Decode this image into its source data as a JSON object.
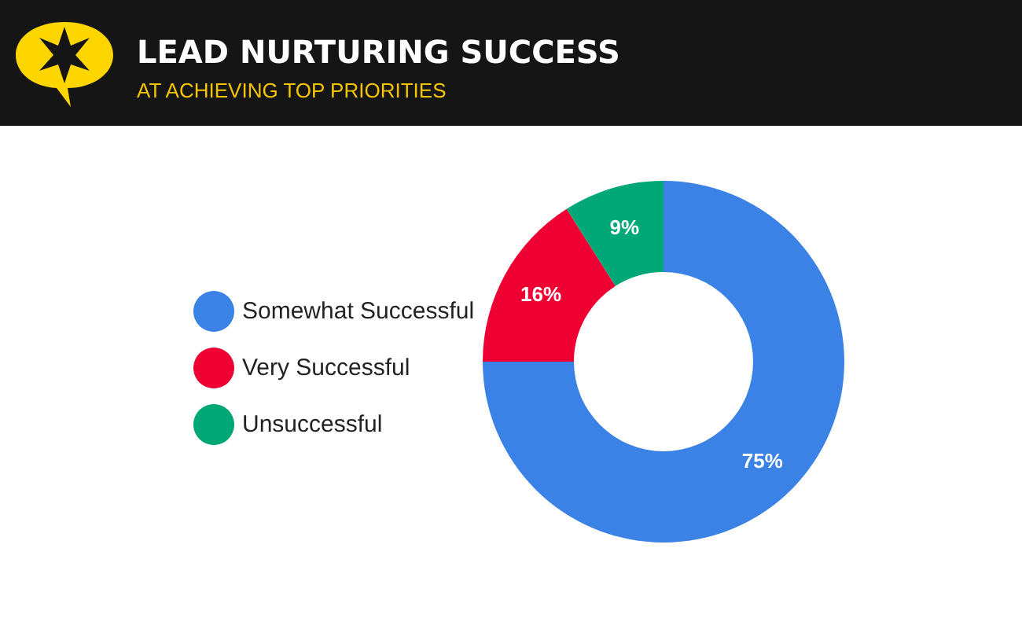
{
  "chart_data": {
    "type": "donut",
    "title": "LEAD NURTURING SUCCESS",
    "subtitle": "AT ACHIEVING TOP PRIORITIES",
    "categories": [
      "Somewhat Successful",
      "Very Successful",
      "Unsuccessful"
    ],
    "values": [
      75,
      16,
      9
    ],
    "colors": [
      "#3a82e6",
      "#ee0033",
      "#00a878"
    ],
    "value_labels": [
      "75%",
      "16%",
      "9%"
    ],
    "legend": "left"
  }
}
